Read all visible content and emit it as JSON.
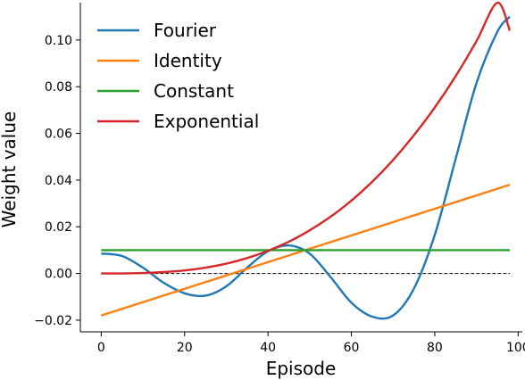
{
  "chart_data": {
    "type": "line",
    "xlabel": "Episode",
    "ylabel": "Weight value",
    "xlim": [
      -5,
      101
    ],
    "ylim": [
      -0.025,
      0.116
    ],
    "xticks": [
      0,
      20,
      40,
      60,
      80,
      100
    ],
    "xtick_labels": [
      "0",
      "20",
      "40",
      "60",
      "80",
      "100"
    ],
    "yticks": [
      -0.02,
      0.0,
      0.02,
      0.04,
      0.06,
      0.08,
      0.1
    ],
    "ytick_labels": [
      "−0.02",
      "0.00",
      "0.02",
      "0.04",
      "0.06",
      "0.08",
      "0.10"
    ],
    "grid": false,
    "legend_position": "top-left",
    "reference_line": {
      "y": 0.0,
      "style": "dashed",
      "color": "#000000"
    },
    "x": [
      0,
      5,
      10,
      15,
      20,
      25,
      30,
      35,
      40,
      45,
      50,
      55,
      60,
      65,
      70,
      75,
      80,
      85,
      90,
      95,
      98
    ],
    "series": [
      {
        "name": "Fourier",
        "color": "#1f77b4",
        "values": [
          0.0085,
          0.0075,
          0.0025,
          -0.004,
          -0.0085,
          -0.0095,
          -0.0055,
          0.0025,
          0.0095,
          0.012,
          0.0085,
          -0.0015,
          -0.0125,
          -0.0185,
          -0.018,
          -0.0065,
          0.0165,
          0.049,
          0.0815,
          0.1035,
          0.11
        ]
      },
      {
        "name": "Identity",
        "color": "#ff7f0e",
        "values": [
          -0.018,
          -0.01514,
          -0.01229,
          -0.00943,
          -0.00657,
          -0.00371,
          -0.00086,
          0.002,
          0.00486,
          0.00771,
          0.01057,
          0.01343,
          0.01629,
          0.01914,
          0.022,
          0.02486,
          0.02771,
          0.03057,
          0.03343,
          0.03629,
          0.038
        ]
      },
      {
        "name": "Constant",
        "color": "#2ca02c",
        "values": [
          0.01,
          0.01,
          0.01,
          0.01,
          0.01,
          0.01,
          0.01,
          0.01,
          0.01,
          0.01,
          0.01,
          0.01,
          0.01,
          0.01,
          0.01,
          0.01,
          0.01,
          0.01,
          0.01,
          0.01,
          0.01
        ]
      },
      {
        "name": "Exponential",
        "color": "#d62728",
        "values": [
          0.0,
          2e-05,
          0.0002,
          0.0006,
          0.0013,
          0.0025,
          0.0042,
          0.0066,
          0.0097,
          0.0136,
          0.0185,
          0.0243,
          0.0312,
          0.0393,
          0.0486,
          0.0592,
          0.0711,
          0.0845,
          0.0995,
          0.116,
          0.104
        ]
      }
    ]
  }
}
